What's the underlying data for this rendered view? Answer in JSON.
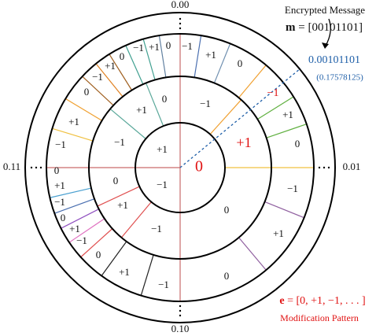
{
  "header": {
    "title": "Encrypted Message",
    "message": {
      "symbol": "m",
      "value": "= [00101101]"
    }
  },
  "pointer": {
    "binary": "0.00101101",
    "decimal": "(0.17578125)"
  },
  "axes": {
    "top": "0.00",
    "right": "0.01",
    "bottom": "0.10",
    "left": "0.11"
  },
  "rings": {
    "inner": [
      "+1",
      "−1",
      "0"
    ],
    "middle": [
      "0",
      "+1",
      "−1",
      "−1",
      "+1",
      "0",
      "0",
      "+1",
      "−1"
    ],
    "outer": [
      "−1",
      "+1",
      "0",
      "−1",
      "+1",
      "0",
      "−1",
      "+1",
      "0",
      "−1",
      "+1",
      "0",
      "−1",
      "+1",
      "0",
      "−1",
      "+1",
      "0",
      "−1",
      "+1",
      "0",
      "−1",
      "+1",
      "0",
      "−1",
      "+1",
      "0"
    ]
  },
  "footer": {
    "pattern": {
      "symbol": "e",
      "value": "= [0, +1, −1, . . . ]"
    },
    "caption": "Modification Pattern"
  }
}
